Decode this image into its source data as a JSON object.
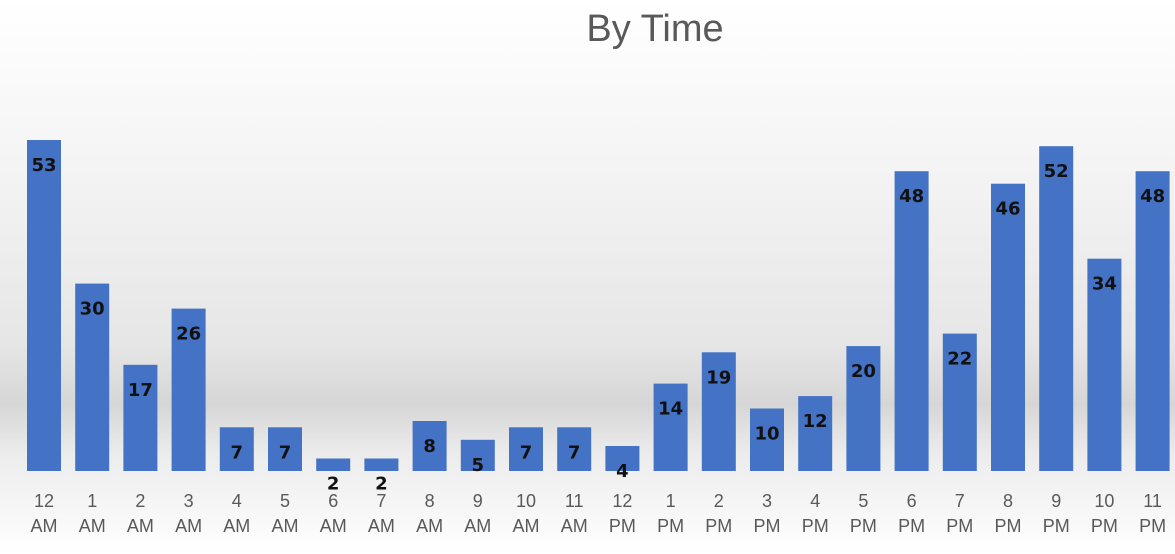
{
  "chart_data": {
    "type": "bar",
    "title": "By Time",
    "xlabel": "",
    "ylabel": "",
    "categories": [
      [
        "12",
        "AM"
      ],
      [
        "1",
        "AM"
      ],
      [
        "2",
        "AM"
      ],
      [
        "3",
        "AM"
      ],
      [
        "4",
        "AM"
      ],
      [
        "5",
        "AM"
      ],
      [
        "6",
        "AM"
      ],
      [
        "7",
        "AM"
      ],
      [
        "8",
        "AM"
      ],
      [
        "9",
        "AM"
      ],
      [
        "10",
        "AM"
      ],
      [
        "11",
        "AM"
      ],
      [
        "12",
        "PM"
      ],
      [
        "1",
        "PM"
      ],
      [
        "2",
        "PM"
      ],
      [
        "3",
        "PM"
      ],
      [
        "4",
        "PM"
      ],
      [
        "5",
        "PM"
      ],
      [
        "6",
        "PM"
      ],
      [
        "7",
        "PM"
      ],
      [
        "8",
        "PM"
      ],
      [
        "9",
        "PM"
      ],
      [
        "10",
        "PM"
      ],
      [
        "11",
        "PM"
      ]
    ],
    "values": [
      53,
      30,
      17,
      26,
      7,
      7,
      2,
      2,
      8,
      5,
      7,
      7,
      4,
      14,
      19,
      10,
      12,
      20,
      48,
      22,
      46,
      52,
      34,
      48
    ],
    "ylim": [
      0,
      53
    ],
    "grid": false,
    "legend": "none",
    "data_labels": true,
    "bar_color": "#4472C4"
  }
}
